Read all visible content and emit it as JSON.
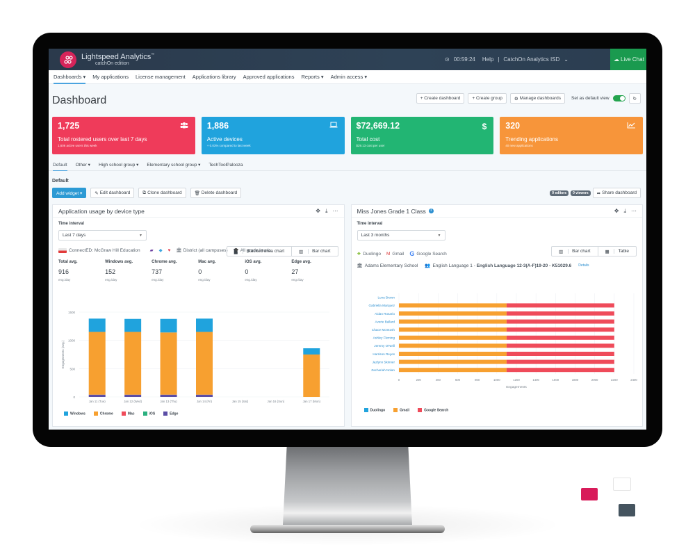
{
  "header": {
    "brand": "Lightspeed Analytics",
    "brand_tm": "™",
    "brand_sub": "catchOn edition",
    "timer": "00:59:24",
    "help": "Help",
    "separator": "|",
    "org": "CatchOn Analytics ISD",
    "live_chat": "Live Chat"
  },
  "nav": {
    "items": [
      {
        "label": "Dashboards ▾"
      },
      {
        "label": "My applications"
      },
      {
        "label": "License management"
      },
      {
        "label": "Applications library"
      },
      {
        "label": "Approved applications"
      },
      {
        "label": "Reports ▾"
      },
      {
        "label": "Admin access ▾"
      }
    ]
  },
  "page": {
    "title": "Dashboard",
    "actions": {
      "create_dashboard": "+ Create dashboard",
      "create_group": "+ Create group",
      "manage_dashboards": "Manage dashboards",
      "default_view_label": "Set as default view",
      "default_view_on": true
    }
  },
  "cards": [
    {
      "value": "1,725",
      "label": "Total rostered users over last 7 days",
      "sub": "1,606 active users this week",
      "icon": "users-icon",
      "color": "#ef3b5a"
    },
    {
      "value": "1,886",
      "label": "Active devices",
      "sub": "+ 0.03% compared to last week",
      "icon": "laptop-icon",
      "color": "#20a3dd"
    },
    {
      "value": "$72,669.12",
      "label": "Total cost",
      "sub": "$29.13 cost per user",
      "icon": "dollar-icon",
      "color": "#22b573"
    },
    {
      "value": "320",
      "label": "Trending applications",
      "sub": "40 new applications",
      "icon": "trend-chart-icon",
      "color": "#f7953a"
    }
  ],
  "tabs": [
    {
      "label": "Default",
      "active": true
    },
    {
      "label": "Other ▾"
    },
    {
      "label": "High school group ▾"
    },
    {
      "label": "Elementary school group ▾"
    },
    {
      "label": "TechToolPalooza"
    }
  ],
  "dashboard": {
    "section_title": "Default",
    "add_widget": "Add widget ▾",
    "edit": "Edit dashboard",
    "clone": "Clone dashboard",
    "delete": "Delete dashboard",
    "editors": "0 editors",
    "viewers": "0 viewers",
    "share": "Share dashboard"
  },
  "widget1": {
    "title": "Application usage by device type",
    "time_label": "Time interval",
    "time_value": "Last 7 days",
    "view_stacked": "Stacked area chart",
    "view_bar": "Bar chart",
    "app": "ConnectED: McGraw Hill Education",
    "scope": "District (all campuses)",
    "grades": "All grade levels",
    "stats": [
      {
        "label": "Total avg.",
        "value": "916",
        "unit": "eng./day"
      },
      {
        "label": "Windows avg.",
        "value": "152",
        "unit": "eng./day"
      },
      {
        "label": "Chrome avg.",
        "value": "737",
        "unit": "eng./day"
      },
      {
        "label": "Mac avg.",
        "value": "0",
        "unit": "eng./day"
      },
      {
        "label": "iOS avg.",
        "value": "0",
        "unit": "eng./day"
      },
      {
        "label": "Edge avg.",
        "value": "27",
        "unit": "eng./day"
      }
    ]
  },
  "widget2": {
    "title": "Miss Jones Grade 1 Class",
    "time_label": "Time interval",
    "time_value": "Last 3 months",
    "view_bar": "Bar chart",
    "view_table": "Table",
    "apps": [
      "Duolingo",
      "Gmail",
      "Google Search"
    ],
    "school": "Adams Elementary School",
    "course_prefix": "English Language 1 - ",
    "course_bold": "English Language 12-3(A-F)19-20 - K51029.6",
    "details": "Details"
  },
  "chart_data": [
    {
      "type": "bar",
      "stacked": true,
      "title": "Application usage by device type",
      "xlabel": "",
      "ylabel": "Engagements (avg.)",
      "ylim": [
        0,
        1500
      ],
      "yticks": [
        0,
        500,
        1000,
        1500
      ],
      "categories": [
        "Jan 11 (Tue)",
        "Jan 12 (Wed)",
        "Jan 13 (Thu)",
        "Jan 14 (Fri)",
        "Jan 15 (Sat)",
        "Jan 16 (Sun)",
        "Jan 17 (Mon)"
      ],
      "series": [
        {
          "name": "Edge",
          "color": "#5b4ea6",
          "values": [
            40,
            40,
            40,
            40,
            0,
            0,
            0
          ]
        },
        {
          "name": "Chrome",
          "color": "#f7a030",
          "values": [
            1110,
            1110,
            1100,
            1110,
            0,
            0,
            750
          ]
        },
        {
          "name": "Mac",
          "color": "#ef4b5a",
          "values": [
            0,
            0,
            0,
            0,
            0,
            0,
            0
          ]
        },
        {
          "name": "iOS",
          "color": "#2bb07f",
          "values": [
            0,
            0,
            0,
            0,
            0,
            0,
            0
          ]
        },
        {
          "name": "Windows",
          "color": "#20a3dd",
          "values": [
            235,
            230,
            240,
            235,
            0,
            0,
            110
          ]
        }
      ],
      "legend": [
        "Windows",
        "Chrome",
        "Mac",
        "iOS",
        "Edge"
      ],
      "legend_position": "bottom",
      "grid": true
    },
    {
      "type": "bar",
      "orientation": "horizontal",
      "stacked": true,
      "title": "Miss Jones Grade 1 Class",
      "xlabel": "Engagements",
      "ylabel": "",
      "xlim": [
        0,
        2400
      ],
      "xticks": [
        0,
        200,
        400,
        600,
        800,
        1000,
        1200,
        1400,
        1600,
        1800,
        2000,
        2200,
        2400
      ],
      "categories": [
        "Luna Brown",
        "Gabriella Marquez",
        "Aidan Rosario",
        "Averie Ballard",
        "Chace McIntosh",
        "Ashley Fleming",
        "Jeremy O'Neill",
        "Harrison Reyes",
        "Jazlynn Skinner",
        "Zachariah Nolan"
      ],
      "series": [
        {
          "name": "Duolingo",
          "color": "#20a3dd",
          "values": [
            0,
            0,
            0,
            0,
            0,
            0,
            0,
            0,
            0,
            0
          ]
        },
        {
          "name": "Gmail",
          "color": "#f7a030",
          "values": [
            0,
            1100,
            1100,
            1100,
            1100,
            1100,
            1100,
            1100,
            1100,
            1100
          ]
        },
        {
          "name": "Google Search",
          "color": "#ef4b5a",
          "values": [
            0,
            1100,
            1100,
            1100,
            1100,
            1100,
            1100,
            1100,
            1100,
            1100
          ]
        }
      ],
      "legend": [
        "Duolingo",
        "Gmail",
        "Google Search"
      ],
      "legend_position": "bottom",
      "grid": true
    }
  ]
}
